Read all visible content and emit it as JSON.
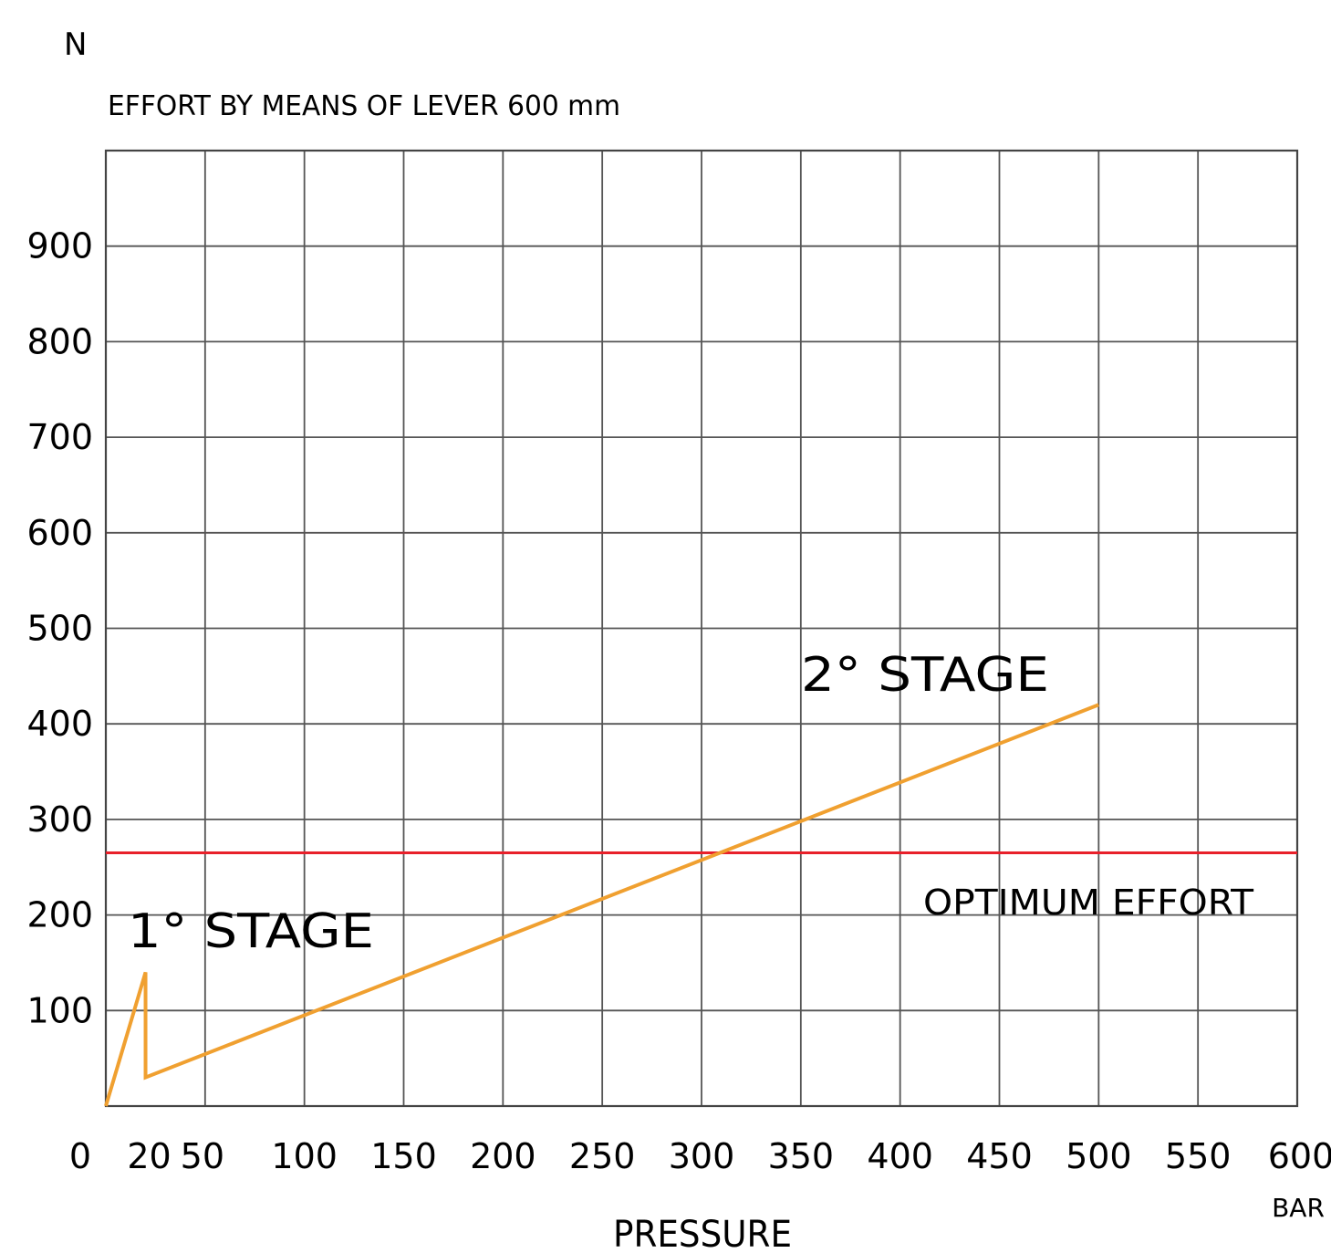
{
  "chart_data": {
    "type": "line",
    "y_unit": "N",
    "subtitle": "EFFORT BY MEANS OF LEVER 600 mm",
    "xlabel": "PRESSURE",
    "x_unit": "BAR",
    "ylabel": "",
    "xlim": [
      0,
      600
    ],
    "ylim": [
      0,
      1000
    ],
    "grid": true,
    "x_ticks": [
      0,
      20,
      50,
      100,
      150,
      200,
      250,
      300,
      350,
      400,
      450,
      500,
      550,
      600
    ],
    "x_tick_labels": [
      "0",
      "20",
      "50",
      "100",
      "150",
      "200",
      "250",
      "300",
      "350",
      "400",
      "450",
      "500",
      "550",
      "600"
    ],
    "y_ticks": [
      100,
      200,
      300,
      400,
      500,
      600,
      700,
      800,
      900
    ],
    "y_tick_labels": [
      "100",
      "200",
      "300",
      "400",
      "500",
      "600",
      "700",
      "800",
      "900"
    ],
    "series": [
      {
        "color": "#f0a030",
        "x": [
          0,
          20,
          20,
          500
        ],
        "y": [
          0,
          140,
          30,
          420
        ]
      }
    ],
    "reference_lines": [
      {
        "y": 265,
        "label": "OPTIMUM EFFORT",
        "color": "#e8202a"
      }
    ],
    "annotations": [
      {
        "text": "1° STAGE",
        "x": 12,
        "y": 165
      },
      {
        "text": "2° STAGE",
        "x": 350,
        "y": 445
      }
    ]
  }
}
